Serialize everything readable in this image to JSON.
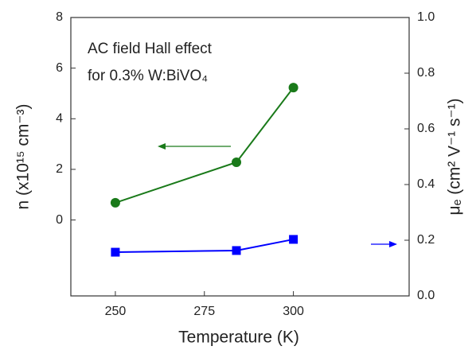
{
  "chart_data": {
    "type": "line",
    "annotations": [
      "AC field Hall effect",
      "for 0.3% W:BiVO₄"
    ],
    "x_label": "Temperature (K)",
    "y_label": "n (x10¹⁵ cm⁻³)",
    "y2_label": "μₑ (cm² V⁻¹ s⁻¹)",
    "x": [
      250,
      284,
      300
    ],
    "xlim": [
      237.5,
      332.5
    ],
    "xticks": [
      250,
      275,
      300
    ],
    "ylim": [
      -3,
      8
    ],
    "yticks": [
      0,
      2,
      4,
      6,
      8
    ],
    "y2lim": [
      0,
      1
    ],
    "y2ticks": [
      {
        "value": 0,
        "label": "0.0"
      },
      0.2,
      0.4,
      0.6,
      0.8,
      {
        "value": 1,
        "label": "1.0"
      }
    ],
    "series": [
      {
        "name": "n",
        "color": "#1a7a1a",
        "marker": "circle",
        "values": [
          0.68,
          2.28,
          5.23
        ]
      },
      {
        "name": "μₑ",
        "color": "#0000ff",
        "marker": "square",
        "axis": "y2",
        "values": [
          0.157,
          0.163,
          0.203
        ]
      }
    ]
  }
}
